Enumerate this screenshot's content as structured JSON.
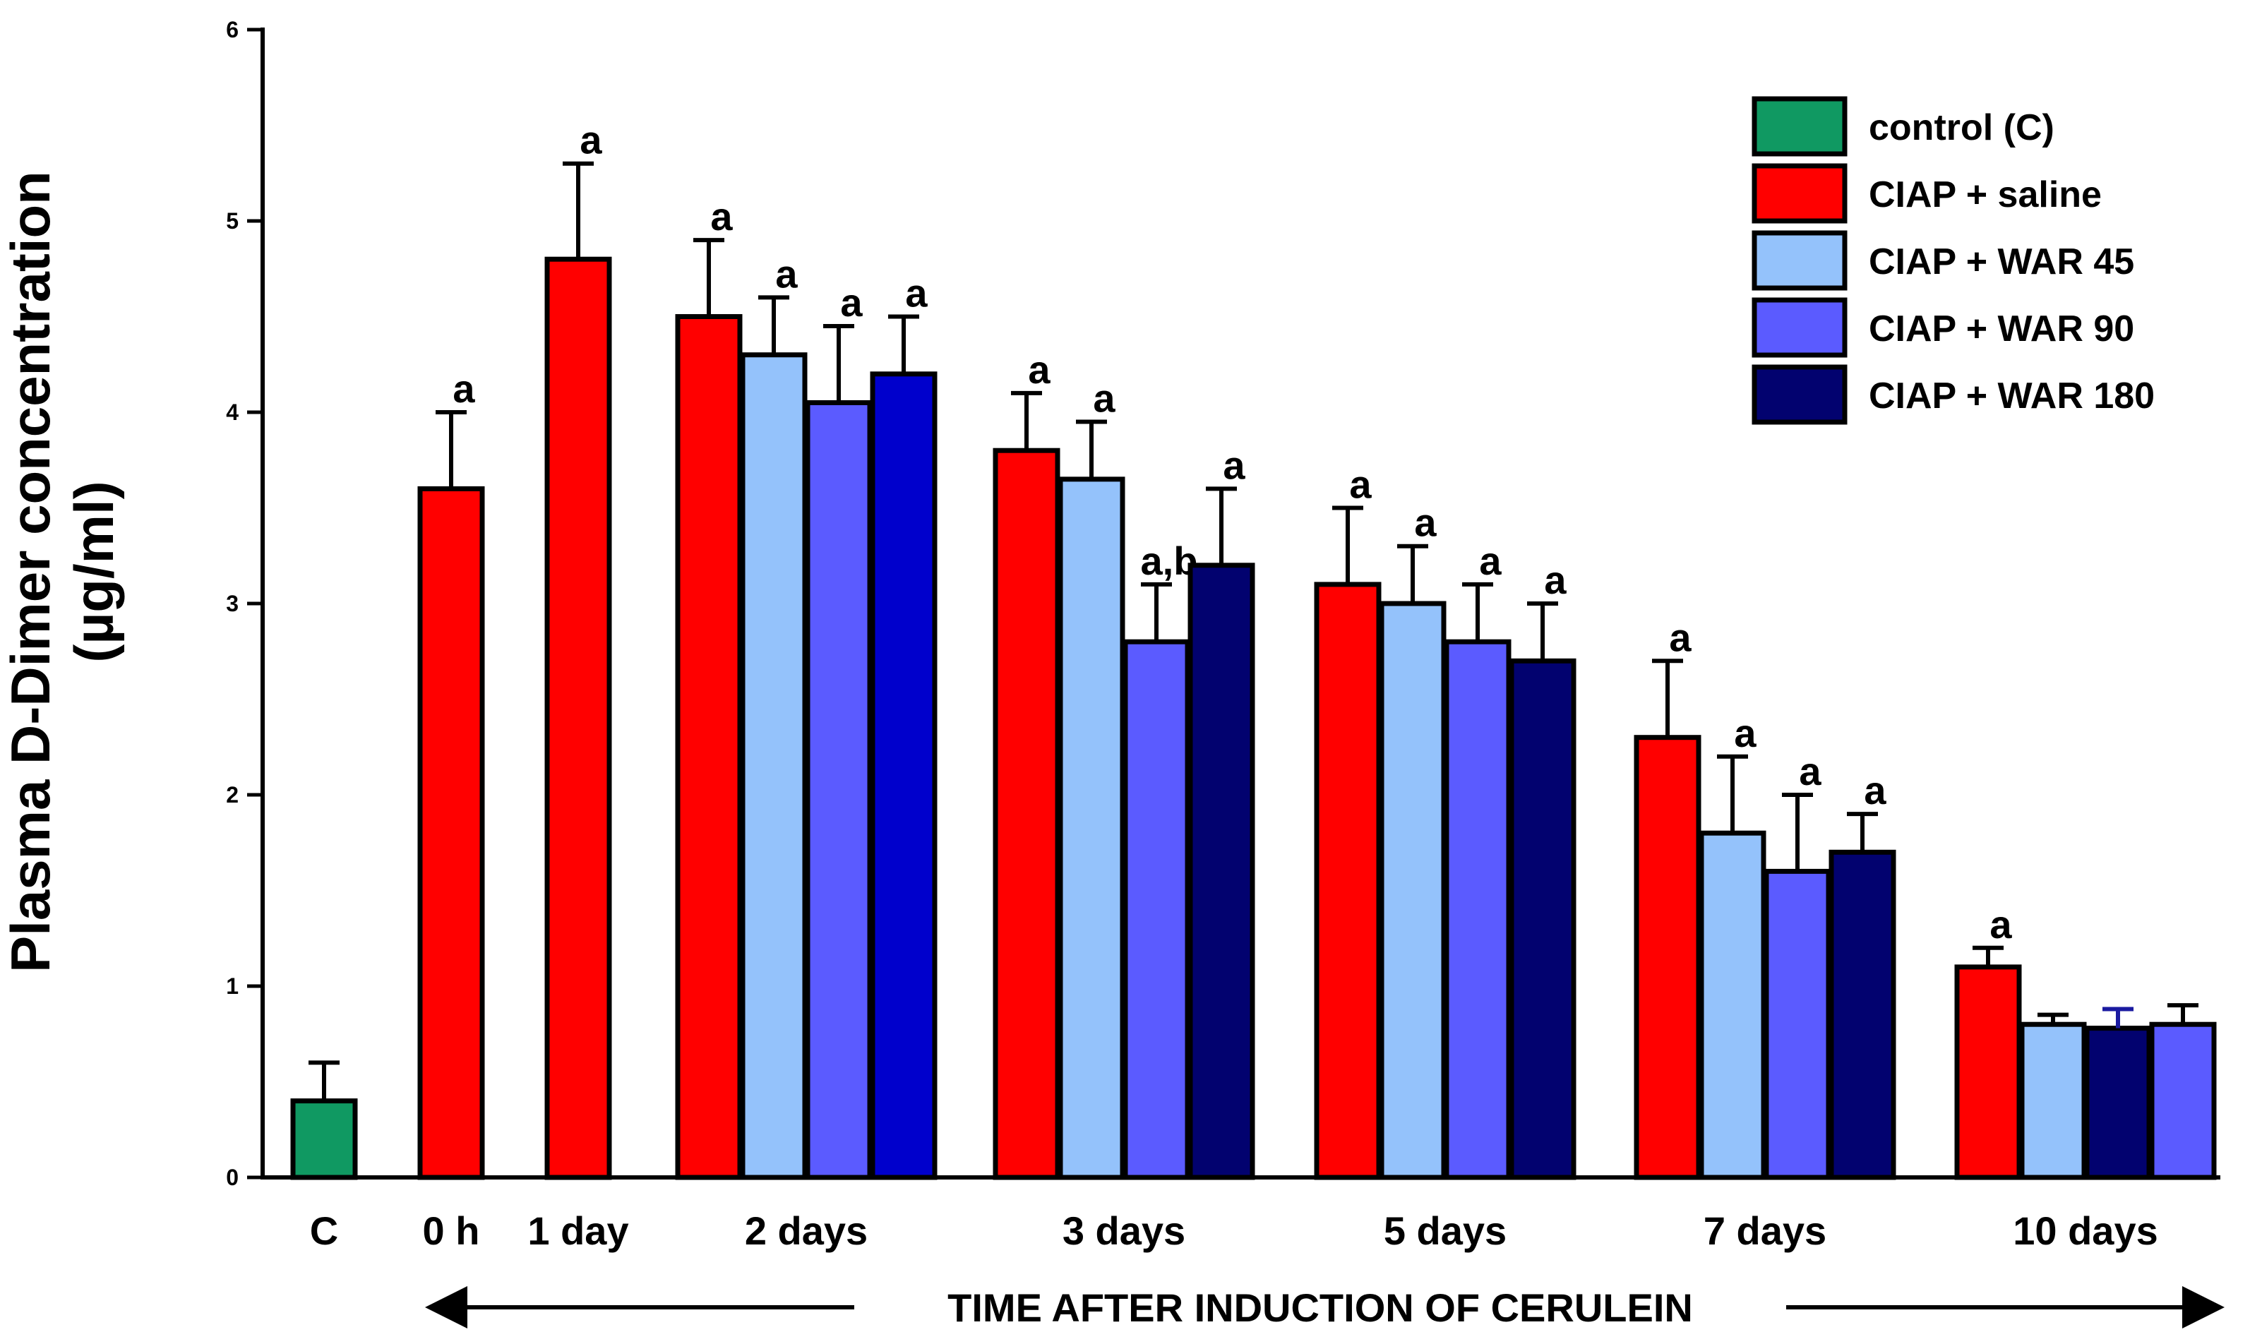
{
  "chart_data": {
    "type": "bar",
    "title": "",
    "ylabel_line1": "Plasma D-Dimer concentration",
    "ylabel_line2": "(µg/ml)",
    "xlabel": "TIME AFTER INDUCTION OF CERULEIN",
    "ylim": [
      0,
      6
    ],
    "yticks": [
      "0",
      "1",
      "2",
      "3",
      "4",
      "5",
      "6"
    ],
    "grid": false,
    "legend_position": "top-right",
    "series": [
      {
        "name": "control (C)",
        "color": "#109962"
      },
      {
        "name": "CIAP + saline",
        "color": "#ff0000"
      },
      {
        "name": "CIAP + WAR 45",
        "color": "#94c2fb"
      },
      {
        "name": "CIAP + WAR 90",
        "color": "#5b5bff"
      },
      {
        "name": "CIAP + WAR 180",
        "color": "#02026f"
      }
    ],
    "groups": [
      {
        "label": "C",
        "bars": [
          {
            "series": "control (C)",
            "value": 0.4,
            "error": 0.2,
            "annotation": ""
          }
        ]
      },
      {
        "label": "0 h",
        "bars": [
          {
            "series": "CIAP + saline",
            "value": 3.6,
            "error": 0.4,
            "annotation": "a"
          }
        ]
      },
      {
        "label": "1 day",
        "bars": [
          {
            "series": "CIAP + saline",
            "value": 4.8,
            "error": 0.5,
            "annotation": "a"
          }
        ]
      },
      {
        "label": "2 days",
        "bars": [
          {
            "series": "CIAP + saline",
            "value": 4.5,
            "error": 0.4,
            "annotation": "a"
          },
          {
            "series": "CIAP + WAR 45",
            "value": 4.3,
            "error": 0.3,
            "annotation": "a"
          },
          {
            "series": "CIAP + WAR 90",
            "value": 4.05,
            "error": 0.4,
            "annotation": "a"
          },
          {
            "series": "CIAP + WAR 180",
            "value": 4.2,
            "error": 0.3,
            "annotation": "a",
            "color": "#0000cc"
          }
        ]
      },
      {
        "label": "3 days",
        "bars": [
          {
            "series": "CIAP + saline",
            "value": 3.8,
            "error": 0.3,
            "annotation": "a"
          },
          {
            "series": "CIAP + WAR 45",
            "value": 3.65,
            "error": 0.3,
            "annotation": "a"
          },
          {
            "series": "CIAP + WAR 90",
            "value": 2.8,
            "error": 0.3,
            "annotation": "a,b"
          },
          {
            "series": "CIAP + WAR 180",
            "value": 3.2,
            "error": 0.4,
            "annotation": "a"
          }
        ]
      },
      {
        "label": "5 days",
        "bars": [
          {
            "series": "CIAP + saline",
            "value": 3.1,
            "error": 0.4,
            "annotation": "a"
          },
          {
            "series": "CIAP + WAR 45",
            "value": 3.0,
            "error": 0.3,
            "annotation": "a"
          },
          {
            "series": "CIAP + WAR 90",
            "value": 2.8,
            "error": 0.3,
            "annotation": "a"
          },
          {
            "series": "CIAP + WAR 180",
            "value": 2.7,
            "error": 0.3,
            "annotation": "a"
          }
        ]
      },
      {
        "label": "7 days",
        "bars": [
          {
            "series": "CIAP + saline",
            "value": 2.3,
            "error": 0.4,
            "annotation": "a"
          },
          {
            "series": "CIAP + WAR 45",
            "value": 1.8,
            "error": 0.4,
            "annotation": "a"
          },
          {
            "series": "CIAP + WAR 90",
            "value": 1.6,
            "error": 0.4,
            "annotation": "a"
          },
          {
            "series": "CIAP + WAR 180",
            "value": 1.7,
            "error": 0.2,
            "annotation": "a"
          }
        ]
      },
      {
        "label": "10 days",
        "bars": [
          {
            "series": "CIAP + saline",
            "value": 1.1,
            "error": 0.1,
            "annotation": "a"
          },
          {
            "series": "CIAP + WAR 45",
            "value": 0.8,
            "error": 0.05,
            "annotation": ""
          },
          {
            "series": "CIAP + WAR 180",
            "value": 0.78,
            "error": 0.1,
            "annotation": "",
            "error_color": "#1a1aa0"
          },
          {
            "series": "CIAP + WAR 90",
            "value": 0.8,
            "error": 0.1,
            "annotation": ""
          }
        ]
      }
    ]
  }
}
